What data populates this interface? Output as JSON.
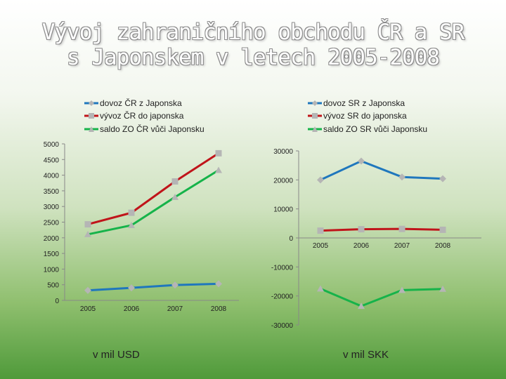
{
  "title": {
    "line1": "Vývoj zahraničního obchodu ČR a SR",
    "line2": "s Japonskem v letech 2005-2008"
  },
  "colors": {
    "blue": "#1f77bd",
    "red": "#c0141a",
    "green": "#16b34a",
    "marker": "#b5b5b5"
  },
  "legend_left": [
    "dovoz ČR z Japonska",
    "vývoz ČR do japonska",
    "saldo ZO ČR vůči Japonsku"
  ],
  "legend_right": [
    "dovoz SR z Japonska",
    "vývoz SR do japonska",
    "saldo ZO SR vůči Japonsku"
  ],
  "units": {
    "left": "v mil USD",
    "right": "v mil SKK"
  },
  "chart_data": [
    {
      "type": "line",
      "x": [
        "2005",
        "2006",
        "2007",
        "2008"
      ],
      "ylim": [
        0,
        5000
      ],
      "yticks": [
        "0",
        "500",
        "1000",
        "1500",
        "2000",
        "2500",
        "3000",
        "3500",
        "4000",
        "4500",
        "5000"
      ],
      "series": [
        {
          "name": "dovoz ČR z Japonska",
          "color": "blue",
          "marker": "diamond",
          "values": [
            320,
            400,
            490,
            530
          ]
        },
        {
          "name": "vývoz ČR do japonska",
          "color": "red",
          "marker": "square",
          "values": [
            2430,
            2800,
            3800,
            4700
          ]
        },
        {
          "name": "saldo ZO ČR vůči Japonsku",
          "color": "green",
          "marker": "triangle",
          "values": [
            2110,
            2400,
            3300,
            4160
          ]
        }
      ]
    },
    {
      "type": "line",
      "x": [
        "2005",
        "2006",
        "2007",
        "2008"
      ],
      "ylim": [
        -30000,
        30000
      ],
      "yticks": [
        "-30000",
        "-20000",
        "-10000",
        "0",
        "10000",
        "20000",
        "30000"
      ],
      "series": [
        {
          "name": "dovoz SR z Japonska",
          "color": "blue",
          "marker": "diamond",
          "values": [
            20000,
            26500,
            21000,
            20400
          ]
        },
        {
          "name": "vývoz SR do japonska",
          "color": "red",
          "marker": "square",
          "values": [
            2500,
            3000,
            3100,
            2800
          ]
        },
        {
          "name": "saldo ZO SR vůči Japonsku",
          "color": "green",
          "marker": "triangle",
          "values": [
            -17500,
            -23500,
            -18000,
            -17600
          ]
        }
      ]
    }
  ]
}
